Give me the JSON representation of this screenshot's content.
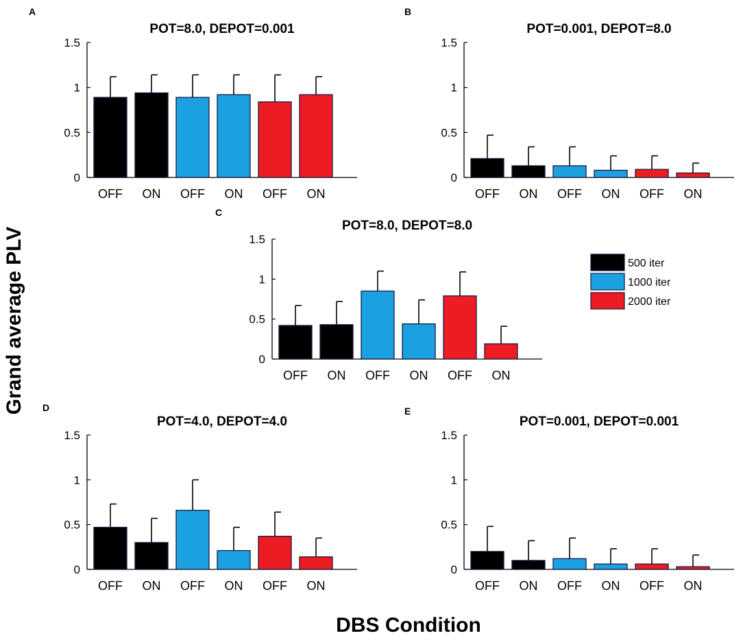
{
  "figure": {
    "ylabel": "Grand average PLV",
    "xlabel": "DBS Condition"
  },
  "colors": {
    "500 iter": "#000000",
    "1000 iter": "#1ba1e2",
    "2000 iter": "#ed1c24"
  },
  "legend": {
    "position": "right of panel C",
    "entries": [
      "500 iter",
      "1000 iter",
      "2000 iter"
    ]
  },
  "chart_data": [
    {
      "panel": "A",
      "type": "bar",
      "title": "POT=8.0, DEPOT=0.001",
      "categories": [
        "OFF",
        "ON",
        "OFF",
        "ON",
        "OFF",
        "ON"
      ],
      "bar_groups": [
        "500 iter",
        "500 iter",
        "1000 iter",
        "1000 iter",
        "2000 iter",
        "2000 iter"
      ],
      "values": [
        0.89,
        0.94,
        0.89,
        0.92,
        0.84,
        0.92
      ],
      "errors": [
        0.23,
        0.2,
        0.25,
        0.22,
        0.3,
        0.2
      ],
      "ylim": [
        0,
        1.5
      ],
      "yticks": [
        0,
        0.5,
        1,
        1.5
      ],
      "ytick_labels": [
        "0",
        "0.5",
        "1",
        "1.5"
      ]
    },
    {
      "panel": "B",
      "type": "bar",
      "title": "POT=0.001, DEPOT=8.0",
      "categories": [
        "OFF",
        "ON",
        "OFF",
        "ON",
        "OFF",
        "ON"
      ],
      "bar_groups": [
        "500 iter",
        "500 iter",
        "1000 iter",
        "1000 iter",
        "2000 iter",
        "2000 iter"
      ],
      "values": [
        0.21,
        0.13,
        0.13,
        0.08,
        0.09,
        0.05
      ],
      "errors": [
        0.26,
        0.21,
        0.21,
        0.16,
        0.15,
        0.11
      ],
      "ylim": [
        0,
        1.5
      ],
      "yticks": [
        0,
        0.5,
        1,
        1.5
      ],
      "ytick_labels": [
        "0",
        "0.5",
        "1",
        "1.5"
      ]
    },
    {
      "panel": "C",
      "type": "bar",
      "title": "POT=8.0, DEPOT=8.0",
      "categories": [
        "OFF",
        "ON",
        "OFF",
        "ON",
        "OFF",
        "ON"
      ],
      "bar_groups": [
        "500 iter",
        "500 iter",
        "1000 iter",
        "1000 iter",
        "2000 iter",
        "2000 iter"
      ],
      "values": [
        0.42,
        0.43,
        0.85,
        0.44,
        0.79,
        0.19
      ],
      "errors": [
        0.25,
        0.29,
        0.25,
        0.3,
        0.3,
        0.22
      ],
      "ylim": [
        0,
        1.5
      ],
      "yticks": [
        0,
        0.5,
        1,
        1.5
      ],
      "ytick_labels": [
        "0",
        "0.5",
        "1",
        "1.5"
      ]
    },
    {
      "panel": "D",
      "type": "bar",
      "title": "POT=4.0, DEPOT=4.0",
      "categories": [
        "OFF",
        "ON",
        "OFF",
        "ON",
        "OFF",
        "ON"
      ],
      "bar_groups": [
        "500 iter",
        "500 iter",
        "1000 iter",
        "1000 iter",
        "2000 iter",
        "2000 iter"
      ],
      "values": [
        0.47,
        0.3,
        0.66,
        0.21,
        0.37,
        0.14
      ],
      "errors": [
        0.26,
        0.27,
        0.34,
        0.26,
        0.27,
        0.21
      ],
      "ylim": [
        0,
        1.5
      ],
      "yticks": [
        0,
        0.5,
        1,
        1.5
      ],
      "ytick_labels": [
        "0",
        "0.5",
        "1",
        "1.5"
      ]
    },
    {
      "panel": "E",
      "type": "bar",
      "title": "POT=0.001, DEPOT=0.001",
      "categories": [
        "OFF",
        "ON",
        "OFF",
        "ON",
        "OFF",
        "ON"
      ],
      "bar_groups": [
        "500 iter",
        "500 iter",
        "1000 iter",
        "1000 iter",
        "2000 iter",
        "2000 iter"
      ],
      "values": [
        0.2,
        0.1,
        0.12,
        0.06,
        0.06,
        0.03
      ],
      "errors": [
        0.28,
        0.22,
        0.23,
        0.17,
        0.17,
        0.13
      ],
      "ylim": [
        0,
        1.5
      ],
      "yticks": [
        0,
        0.5,
        1,
        1.5
      ],
      "ytick_labels": [
        "0",
        "0.5",
        "1",
        "1.5"
      ]
    }
  ]
}
